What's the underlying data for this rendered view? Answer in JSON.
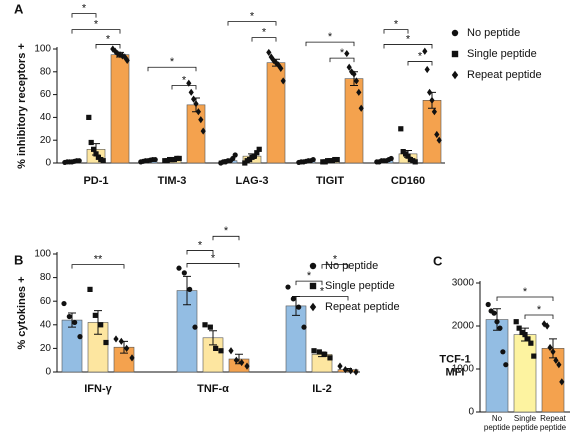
{
  "chart_data": [
    {
      "type": "bar",
      "panel": "A",
      "ylabel": "% inhibitory receptors +",
      "categories": [
        "PD-1",
        "TIM-3",
        "LAG-3",
        "TIGIT",
        "CD160"
      ],
      "ylim": [
        0,
        100
      ],
      "yticks": [
        0,
        20,
        40,
        60,
        80,
        100
      ],
      "series": [
        {
          "name": "No peptide",
          "color": "#93bde3",
          "marker": "circle",
          "values": [
            1,
            2,
            2,
            1.5,
            2
          ],
          "errors": [
            0.5,
            0.5,
            1,
            0.5,
            0.5
          ],
          "points": [
            [
              0.5,
              1,
              1,
              1,
              1.5,
              2,
              2
            ],
            [
              1,
              1.5,
              2,
              2,
              2.5,
              3,
              3
            ],
            [
              0,
              1,
              1,
              2,
              2,
              4,
              7
            ],
            [
              0.5,
              1,
              1,
              1.5,
              2,
              2,
              3
            ],
            [
              1,
              1,
              2,
              2,
              2,
              3,
              4
            ]
          ]
        },
        {
          "name": "Single peptide",
          "color": "#fde6a0",
          "marker": "square",
          "values": [
            12,
            3,
            6,
            2,
            8
          ],
          "errors": [
            5,
            0.5,
            2,
            0.5,
            3
          ],
          "points": [
            [
              40,
              18,
              12,
              8,
              5,
              3,
              2
            ],
            [
              2,
              2,
              3,
              3,
              3,
              4,
              4
            ],
            [
              0,
              2,
              3,
              5,
              6,
              9,
              12
            ],
            [
              1,
              1,
              2,
              2,
              2,
              3,
              3
            ],
            [
              30,
              10,
              8,
              6,
              3,
              2,
              1
            ]
          ]
        },
        {
          "name": "Repeat peptide",
          "color": "#f4a24e",
          "marker": "diamond",
          "values": [
            95,
            51,
            88,
            74,
            55
          ],
          "errors": [
            2,
            6,
            3,
            6,
            7
          ],
          "points": [
            [
              100,
              98,
              96,
              95,
              94,
              93,
              90
            ],
            [
              70,
              62,
              56,
              52,
              45,
              38,
              28
            ],
            [
              97,
              93,
              90,
              88,
              86,
              83,
              72
            ],
            [
              96,
              84,
              80,
              78,
              72,
              62,
              48
            ],
            [
              98,
              82,
              62,
              55,
              45,
              25,
              20
            ]
          ]
        }
      ],
      "brackets": [
        {
          "category": 0,
          "from": 0,
          "to": 1,
          "y": 131,
          "label": "*"
        },
        {
          "category": 0,
          "from": 0,
          "to": 2,
          "y": 117,
          "label": "*"
        },
        {
          "category": 0,
          "from": 1,
          "to": 2,
          "y": 104,
          "label": "*"
        },
        {
          "category": 1,
          "from": 0,
          "to": 2,
          "y": 84,
          "label": "*"
        },
        {
          "category": 1,
          "from": 1,
          "to": 2,
          "y": 68,
          "label": "*"
        },
        {
          "category": 2,
          "from": 0,
          "to": 2,
          "y": 124,
          "label": "*"
        },
        {
          "category": 2,
          "from": 1,
          "to": 2,
          "y": 110,
          "label": "*"
        },
        {
          "category": 3,
          "from": 0,
          "to": 2,
          "y": 106,
          "label": "*"
        },
        {
          "category": 3,
          "from": 1,
          "to": 2,
          "y": 92,
          "label": "*"
        },
        {
          "category": 4,
          "from": 0,
          "to": 1,
          "y": 117,
          "label": "*"
        },
        {
          "category": 4,
          "from": 0,
          "to": 2,
          "y": 104,
          "label": "*"
        },
        {
          "category": 4,
          "from": 1,
          "to": 2,
          "y": 89,
          "label": "*"
        }
      ]
    },
    {
      "type": "bar",
      "panel": "B",
      "ylabel": "% cytokines +",
      "categories": [
        "IFN-γ",
        "TNF-α",
        "IL-2"
      ],
      "ylim": [
        0,
        100
      ],
      "yticks": [
        0,
        20,
        40,
        60,
        80,
        100
      ],
      "series": [
        {
          "name": "No peptide",
          "color": "#93bde3",
          "marker": "circle",
          "values": [
            44,
            69,
            56
          ],
          "errors": [
            6,
            12,
            8
          ],
          "points": [
            [
              58,
              47,
              42,
              30
            ],
            [
              88,
              84,
              70,
              38
            ],
            [
              72,
              62,
              55,
              38
            ]
          ]
        },
        {
          "name": "Single peptide",
          "color": "#fde6a0",
          "marker": "square",
          "values": [
            42,
            29,
            15
          ],
          "errors": [
            10,
            6,
            2
          ],
          "points": [
            [
              70,
              48,
              40,
              25
            ],
            [
              40,
              38,
              20,
              18
            ],
            [
              18,
              17,
              15,
              12
            ]
          ]
        },
        {
          "name": "Repeat peptide",
          "color": "#f4a24e",
          "marker": "diamond",
          "values": [
            21,
            11,
            2
          ],
          "errors": [
            5,
            4,
            1
          ],
          "points": [
            [
              28,
              26,
              20,
              12
            ],
            [
              18,
              10,
              8,
              5
            ],
            [
              5,
              2,
              1,
              0
            ]
          ]
        }
      ],
      "brackets": [
        {
          "category": 0,
          "from": 0,
          "to": 2,
          "y": 91,
          "label": "**"
        },
        {
          "category": 1,
          "from": 1,
          "to": 2,
          "y": 115,
          "label": "*"
        },
        {
          "category": 1,
          "from": 0,
          "to": 1,
          "y": 103,
          "label": "*"
        },
        {
          "category": 1,
          "from": 0,
          "to": 2,
          "y": 92,
          "label": "*"
        },
        {
          "category": 2,
          "from": 1,
          "to": 2,
          "y": 91,
          "label": "*"
        },
        {
          "category": 2,
          "from": 0,
          "to": 1,
          "y": 77,
          "label": "*"
        },
        {
          "category": 2,
          "from": 0,
          "to": 2,
          "y": 64,
          "label": "*"
        }
      ]
    },
    {
      "type": "bar",
      "panel": "C",
      "ylabel": [
        "TCF-1",
        "MFI"
      ],
      "categories": [
        [
          "No",
          "peptide"
        ],
        [
          "Single",
          "peptide"
        ],
        [
          "Repeat",
          "peptide"
        ]
      ],
      "ylim": [
        0,
        3000
      ],
      "yticks": [
        0,
        1000,
        2000,
        3000
      ],
      "colors": [
        "#93bde3",
        "#fdf3a0",
        "#f4a24e"
      ],
      "markers": [
        "circle",
        "square",
        "diamond"
      ],
      "values": [
        2150,
        1800,
        1480
      ],
      "errors": [
        250,
        150,
        220
      ],
      "points": [
        [
          2500,
          2350,
          2300,
          2100,
          1950,
          1400,
          1100
        ],
        [
          2100,
          1950,
          1850,
          1800,
          1700,
          1600,
          1300
        ],
        [
          2050,
          2000,
          1500,
          1400,
          1200,
          1100,
          700
        ]
      ],
      "brackets": [
        {
          "from": 0,
          "to": 2,
          "y": 2675,
          "label": "*"
        },
        {
          "from": 1,
          "to": 2,
          "y": 2255,
          "label": "*"
        }
      ]
    }
  ]
}
